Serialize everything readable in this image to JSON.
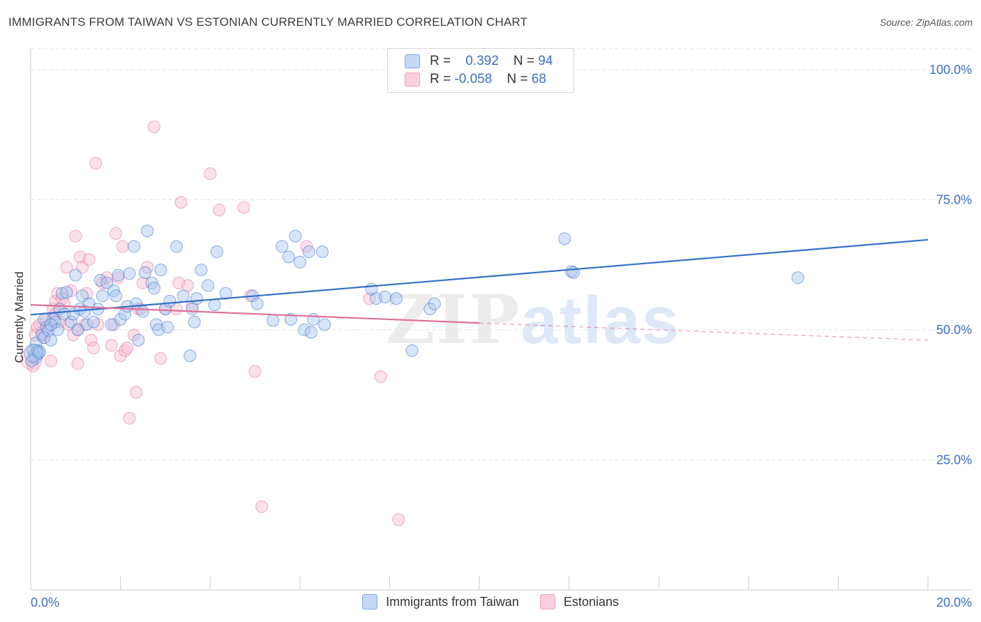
{
  "header": {
    "title": "IMMIGRANTS FROM TAIWAN VS ESTONIAN CURRENTLY MARRIED CORRELATION CHART",
    "source": "Source: ZipAtlas.com"
  },
  "legend_top": {
    "rows": [
      {
        "r_label": "R =",
        "r_value": "0.392",
        "n_label": "N =",
        "n_value": "94",
        "color": "#7fa9e8"
      },
      {
        "r_label": "R =",
        "r_value": "-0.058",
        "n_label": "N =",
        "n_value": "68",
        "color": "#f2a3bd"
      }
    ]
  },
  "legend_bottom": {
    "items": [
      "Immigrants from Taiwan",
      "Estonians"
    ]
  },
  "watermark": {
    "part1": "ZIP",
    "part2": "atlas"
  },
  "colors": {
    "blue": "#3470c9",
    "blue_fill": "#a9c6f0",
    "pink": "#e0709a",
    "pink_fill": "#f6bdd0",
    "grid": "#e3e3e3",
    "tick_label": "#3b6fc4"
  },
  "chart_data": {
    "type": "scatter",
    "title": "IMMIGRANTS FROM TAIWAN VS ESTONIAN CURRENTLY MARRIED CORRELATION CHART",
    "xlabel": "",
    "ylabel": "Currently Married",
    "xlim": [
      0,
      20
    ],
    "ylim": [
      0,
      104
    ],
    "x_tick_labels": [
      "0.0%",
      "20.0%"
    ],
    "y_ticks": [
      25,
      50,
      75,
      100
    ],
    "y_tick_labels": [
      "25.0%",
      "50.0%",
      "75.0%",
      "100.0%"
    ],
    "grid": true,
    "legend_position": "top-center",
    "series": [
      {
        "name": "Immigrants from Taiwan",
        "color": "#3470c9",
        "trend": {
          "x": [
            0,
            20
          ],
          "y": [
            52.9,
            67.3
          ],
          "dashed_after": null
        },
        "points": [
          [
            0.05,
            46.0
          ],
          [
            0.08,
            45.0
          ],
          [
            0.1,
            44.5
          ],
          [
            0.12,
            47.5
          ],
          [
            0.15,
            46.0
          ],
          [
            0.18,
            45.5
          ],
          [
            0.2,
            45.8
          ],
          [
            0.25,
            49.0
          ],
          [
            0.3,
            48.5
          ],
          [
            0.35,
            50.5
          ],
          [
            0.4,
            49.8
          ],
          [
            0.45,
            48.0
          ],
          [
            0.5,
            52.0
          ],
          [
            0.55,
            51.5
          ],
          [
            0.6,
            50.0
          ],
          [
            0.65,
            54.0
          ],
          [
            0.7,
            57.0
          ],
          [
            0.75,
            53.0
          ],
          [
            0.8,
            57.2
          ],
          [
            0.9,
            51.5
          ],
          [
            0.95,
            53.0
          ],
          [
            1.0,
            60.5
          ],
          [
            1.1,
            54.0
          ],
          [
            1.15,
            56.5
          ],
          [
            1.2,
            53.5
          ],
          [
            1.25,
            51.0
          ],
          [
            1.3,
            55.0
          ],
          [
            1.4,
            51.5
          ],
          [
            1.5,
            54.0
          ],
          [
            1.55,
            59.5
          ],
          [
            1.6,
            56.5
          ],
          [
            1.7,
            59.0
          ],
          [
            1.8,
            51.0
          ],
          [
            1.85,
            57.5
          ],
          [
            1.9,
            56.5
          ],
          [
            1.95,
            60.5
          ],
          [
            2.0,
            52.0
          ],
          [
            2.1,
            53.0
          ],
          [
            2.2,
            60.8
          ],
          [
            2.3,
            66.0
          ],
          [
            2.35,
            55.0
          ],
          [
            2.4,
            48.0
          ],
          [
            2.5,
            53.5
          ],
          [
            2.55,
            61.0
          ],
          [
            2.6,
            69.0
          ],
          [
            2.7,
            59.0
          ],
          [
            2.75,
            58.0
          ],
          [
            2.8,
            51.0
          ],
          [
            2.85,
            50.0
          ],
          [
            2.9,
            61.5
          ],
          [
            3.0,
            54.0
          ],
          [
            3.1,
            55.5
          ],
          [
            3.25,
            66.0
          ],
          [
            3.4,
            56.5
          ],
          [
            3.55,
            45.0
          ],
          [
            3.6,
            54.0
          ],
          [
            3.65,
            51.5
          ],
          [
            3.7,
            56.0
          ],
          [
            3.8,
            61.5
          ],
          [
            3.95,
            58.5
          ],
          [
            4.1,
            54.8
          ],
          [
            4.15,
            65.0
          ],
          [
            4.35,
            57.0
          ],
          [
            4.95,
            56.5
          ],
          [
            5.05,
            55.0
          ],
          [
            5.4,
            51.8
          ],
          [
            5.6,
            66.0
          ],
          [
            5.75,
            64.0
          ],
          [
            5.8,
            52.0
          ],
          [
            5.9,
            68.0
          ],
          [
            6.0,
            63.0
          ],
          [
            6.1,
            50.0
          ],
          [
            6.2,
            65.0
          ],
          [
            6.25,
            49.5
          ],
          [
            6.3,
            52.0
          ],
          [
            6.5,
            65.0
          ],
          [
            6.55,
            51.0
          ],
          [
            7.6,
            57.8
          ],
          [
            7.7,
            56.0
          ],
          [
            7.9,
            56.3
          ],
          [
            8.15,
            56.0
          ],
          [
            8.5,
            46.0
          ],
          [
            8.9,
            54.0
          ],
          [
            9.0,
            55.0
          ],
          [
            11.9,
            67.5
          ],
          [
            12.05,
            61.2
          ],
          [
            12.1,
            61.0
          ],
          [
            17.1,
            60.0
          ],
          [
            0.02,
            44.0
          ],
          [
            0.3,
            52.0
          ],
          [
            0.45,
            51.0
          ],
          [
            1.05,
            50.0
          ],
          [
            2.15,
            54.5
          ],
          [
            3.05,
            50.5
          ]
        ]
      },
      {
        "name": "Estonians",
        "color": "#e0709a",
        "trend": {
          "x": [
            0,
            10
          ],
          "y": [
            54.8,
            51.3
          ],
          "dashed_to": [
            20,
            48.0
          ]
        },
        "points": [
          [
            0.02,
            44.0
          ],
          [
            0.05,
            43.0
          ],
          [
            0.1,
            49.0
          ],
          [
            0.15,
            50.5
          ],
          [
            0.2,
            51.0
          ],
          [
            0.25,
            49.5
          ],
          [
            0.3,
            48.5
          ],
          [
            0.35,
            52.0
          ],
          [
            0.4,
            50.5
          ],
          [
            0.45,
            44.0
          ],
          [
            0.5,
            54.0
          ],
          [
            0.55,
            55.5
          ],
          [
            0.6,
            57.0
          ],
          [
            0.65,
            51.5
          ],
          [
            0.7,
            56.0
          ],
          [
            0.75,
            55.0
          ],
          [
            0.8,
            62.0
          ],
          [
            0.85,
            51.0
          ],
          [
            0.9,
            57.5
          ],
          [
            0.95,
            49.0
          ],
          [
            1.0,
            68.0
          ],
          [
            1.05,
            43.5
          ],
          [
            1.1,
            64.0
          ],
          [
            1.15,
            62.0
          ],
          [
            1.2,
            51.0
          ],
          [
            1.25,
            57.0
          ],
          [
            1.3,
            63.5
          ],
          [
            1.35,
            48.0
          ],
          [
            1.4,
            46.5
          ],
          [
            1.45,
            82.0
          ],
          [
            1.5,
            51.0
          ],
          [
            1.6,
            59.0
          ],
          [
            1.7,
            60.0
          ],
          [
            1.8,
            47.0
          ],
          [
            1.85,
            51.0
          ],
          [
            1.9,
            68.5
          ],
          [
            1.95,
            60.0
          ],
          [
            2.0,
            45.0
          ],
          [
            2.05,
            66.0
          ],
          [
            2.1,
            46.0
          ],
          [
            2.15,
            46.5
          ],
          [
            2.2,
            33.0
          ],
          [
            2.3,
            49.0
          ],
          [
            2.35,
            38.0
          ],
          [
            2.4,
            54.0
          ],
          [
            2.5,
            59.0
          ],
          [
            2.6,
            62.0
          ],
          [
            2.75,
            89.0
          ],
          [
            2.9,
            44.5
          ],
          [
            3.0,
            54.0
          ],
          [
            3.25,
            54.0
          ],
          [
            3.3,
            59.0
          ],
          [
            3.35,
            74.5
          ],
          [
            3.5,
            58.5
          ],
          [
            3.6,
            54.5
          ],
          [
            4.0,
            80.0
          ],
          [
            4.2,
            73.0
          ],
          [
            4.75,
            73.5
          ],
          [
            4.9,
            56.5
          ],
          [
            5.0,
            42.0
          ],
          [
            5.15,
            16.0
          ],
          [
            6.15,
            66.0
          ],
          [
            7.55,
            56.0
          ],
          [
            7.8,
            41.0
          ],
          [
            8.2,
            13.5
          ],
          [
            0.55,
            53.0
          ],
          [
            1.05,
            50.0
          ],
          [
            2.45,
            54.0
          ]
        ]
      }
    ]
  }
}
